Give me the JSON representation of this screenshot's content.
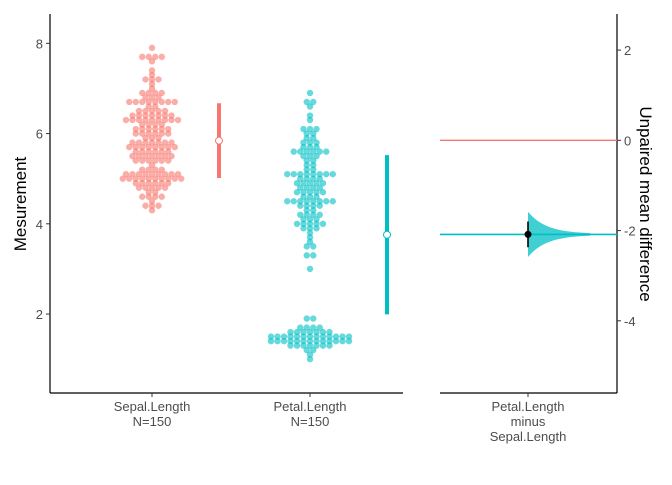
{
  "chart_data": {
    "type": "scatter",
    "subtype": "estimation-plot",
    "ylabel_left": "Mesurement",
    "ylabel_right": "Unpaired mean difference",
    "ylim_left": [
      0.25,
      8.65
    ],
    "ylim_right": [
      -5.6,
      2.8
    ],
    "yticks_left": [
      2,
      4,
      6,
      8
    ],
    "yticks_right": [
      2,
      0,
      -2,
      -4
    ],
    "grid": false,
    "colors": {
      "Sepal.Length": "#F8766D",
      "Petal.Length": "#00BFC4",
      "delta_point": "#000000"
    },
    "groups": [
      {
        "name": "Sepal.Length",
        "n_label": "N=150",
        "mean": 5.843,
        "sd": 0.828,
        "values": [
          5.1,
          4.9,
          4.7,
          4.6,
          5.0,
          5.4,
          4.6,
          5.0,
          4.4,
          4.9,
          5.4,
          4.8,
          4.8,
          4.3,
          5.8,
          5.7,
          5.4,
          5.1,
          5.7,
          5.1,
          5.4,
          5.1,
          4.6,
          5.1,
          4.8,
          5.0,
          5.0,
          5.2,
          5.2,
          4.7,
          4.8,
          5.4,
          5.2,
          5.5,
          4.9,
          5.0,
          5.5,
          4.9,
          4.4,
          5.1,
          5.0,
          4.5,
          4.4,
          5.0,
          5.1,
          4.8,
          5.1,
          4.6,
          5.3,
          5.0,
          7.0,
          6.4,
          6.9,
          5.5,
          6.5,
          5.7,
          6.3,
          4.9,
          6.6,
          5.2,
          5.0,
          5.9,
          6.0,
          6.1,
          5.6,
          6.7,
          5.6,
          5.8,
          6.2,
          5.6,
          5.9,
          6.1,
          6.3,
          6.1,
          6.4,
          6.6,
          6.8,
          6.7,
          6.0,
          5.7,
          5.5,
          5.5,
          5.8,
          6.0,
          5.4,
          6.0,
          6.7,
          6.3,
          5.6,
          5.5,
          5.5,
          6.1,
          5.8,
          5.0,
          5.6,
          5.7,
          5.7,
          6.2,
          5.1,
          5.7,
          6.3,
          5.8,
          7.1,
          6.3,
          6.5,
          7.6,
          4.9,
          7.3,
          6.7,
          7.2,
          6.5,
          6.4,
          6.8,
          5.7,
          5.8,
          6.4,
          6.5,
          7.7,
          7.7,
          6.0,
          6.9,
          5.6,
          7.7,
          6.3,
          6.7,
          7.2,
          6.2,
          6.1,
          6.4,
          7.2,
          7.4,
          7.9,
          6.4,
          6.3,
          6.1,
          7.7,
          6.3,
          6.4,
          6.0,
          6.9,
          6.7,
          6.9,
          5.8,
          6.8,
          6.7,
          6.7,
          6.3,
          6.5,
          6.2,
          5.9
        ]
      },
      {
        "name": "Petal.Length",
        "n_label": "N=150",
        "mean": 3.758,
        "sd": 1.765,
        "values": [
          1.4,
          1.4,
          1.3,
          1.5,
          1.4,
          1.7,
          1.4,
          1.5,
          1.4,
          1.5,
          1.5,
          1.6,
          1.4,
          1.1,
          1.2,
          1.5,
          1.3,
          1.4,
          1.7,
          1.5,
          1.7,
          1.5,
          1.0,
          1.7,
          1.9,
          1.6,
          1.6,
          1.5,
          1.4,
          1.6,
          1.6,
          1.5,
          1.5,
          1.4,
          1.5,
          1.2,
          1.3,
          1.4,
          1.3,
          1.5,
          1.3,
          1.3,
          1.3,
          1.6,
          1.9,
          1.4,
          1.6,
          1.4,
          1.5,
          1.4,
          4.7,
          4.5,
          4.9,
          4.0,
          4.6,
          4.5,
          4.7,
          3.3,
          4.6,
          3.9,
          3.5,
          4.2,
          4.0,
          4.7,
          3.6,
          4.4,
          4.5,
          4.1,
          4.5,
          3.9,
          4.8,
          4.0,
          4.9,
          4.7,
          4.3,
          4.4,
          4.8,
          5.0,
          4.5,
          3.5,
          3.8,
          3.7,
          3.9,
          5.1,
          4.5,
          4.5,
          4.7,
          4.4,
          4.1,
          4.0,
          4.4,
          4.6,
          4.0,
          3.3,
          4.2,
          4.2,
          4.2,
          4.3,
          3.0,
          4.1,
          6.0,
          5.1,
          5.9,
          5.6,
          5.8,
          6.6,
          4.5,
          6.3,
          5.8,
          6.1,
          5.1,
          5.3,
          5.5,
          5.0,
          5.1,
          5.3,
          5.5,
          6.7,
          6.9,
          5.0,
          5.7,
          4.9,
          6.7,
          4.9,
          5.7,
          6.0,
          4.8,
          4.9,
          5.6,
          5.8,
          6.1,
          6.4,
          5.6,
          5.1,
          5.6,
          6.1,
          5.6,
          5.5,
          4.8,
          5.4,
          5.6,
          5.1,
          5.1,
          5.9,
          5.7,
          5.2,
          5.0,
          5.2,
          5.4,
          5.1
        ]
      }
    ],
    "delta": {
      "label_lines": [
        "Petal.Length",
        "minus",
        "Sepal.Length"
      ],
      "mean_diff": -2.085,
      "ci": [
        -2.37,
        -1.8
      ]
    }
  }
}
